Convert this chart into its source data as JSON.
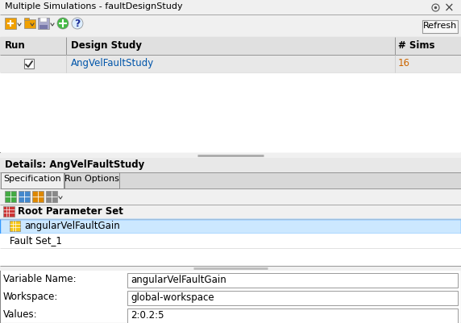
{
  "title": "Multiple Simulations - faultDesignStudy",
  "bg_color": "#f0f0f0",
  "white": "#ffffff",
  "blue_highlight": "#cce8ff",
  "blue_border": "#3399ff",
  "dark_text": "#000000",
  "blue_link": "#0055aa",
  "orange_text": "#cc6600",
  "header_bg": "#e0e0e0",
  "border_color": "#aaaaaa",
  "dark_border": "#888888",
  "tab_active_bg": "#f0f0f0",
  "tab_inactive_bg": "#d8d8d8",
  "row_selected_bg": "#e8e8e8",
  "details_header_bg": "#e8e8e8",
  "header_text_run": "Run",
  "header_text_study": "Design Study",
  "header_text_sims": "# Sims",
  "row1_study": "AngVelFaultStudy",
  "row1_sims": "16",
  "details_title": "Details: AngVelFaultStudy",
  "tab1": "Specification",
  "tab2": "Run Options",
  "root_param_set": "Root Parameter Set",
  "param_item": "angularVelFaultGain",
  "fault_item": "Fault Set_1",
  "var_name_label": "Variable Name:",
  "var_name_value": "angularVelFaultGain",
  "workspace_label": "Workspace:",
  "workspace_value": "global-workspace",
  "values_label": "Values:",
  "values_value": "2:0.2:5",
  "refresh_btn": "Refresh",
  "figsize": [
    5.72,
    4.01
  ],
  "dpi": 100
}
